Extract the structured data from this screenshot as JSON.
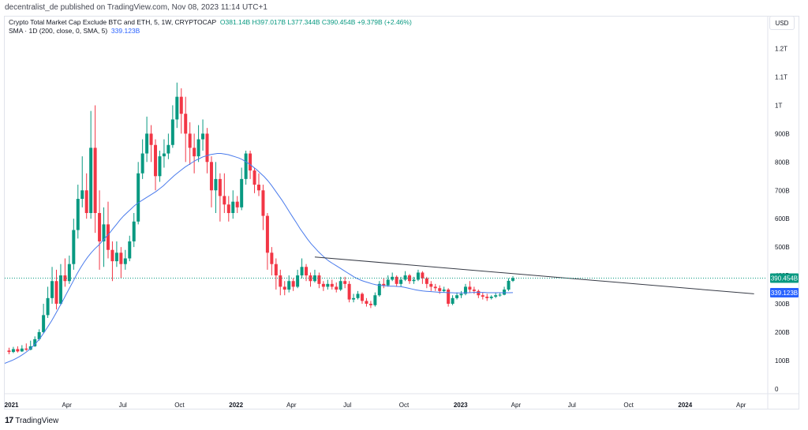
{
  "header": {
    "byline": "decentralist_de published on TradingView.com, Nov 08, 2023 11:14 UTC+1"
  },
  "legend": {
    "symbol": "Crypto Total Market Cap Exclude BTC and ETH, 5, 1W, CRYPTOCAP",
    "ohlc": "O381.14B H397.017B L377.344B C390.454B +9.379B (+2.46%)",
    "sma_label": "SMA · 1D (200, close, 0, SMA, 5)",
    "sma_value": "339.123B"
  },
  "toolbar": {
    "currency": "USD"
  },
  "footer": {
    "logo_text": "TradingView"
  },
  "colors": {
    "up": "#089981",
    "down": "#f23645",
    "sma": "#4a7bec",
    "trendline": "#363a45",
    "price_line": "#089981"
  },
  "chart_data": {
    "type": "candlestick",
    "timeframe": "1W",
    "y_unit": "B USD",
    "yticks": [
      {
        "v": 0,
        "label": "0"
      },
      {
        "v": 100,
        "label": "100B"
      },
      {
        "v": 200,
        "label": "200B"
      },
      {
        "v": 300,
        "label": "300B"
      },
      {
        "v": 400,
        "label": "400B"
      },
      {
        "v": 500,
        "label": "500B"
      },
      {
        "v": 600,
        "label": "600B"
      },
      {
        "v": 700,
        "label": "700B"
      },
      {
        "v": 800,
        "label": "800B"
      },
      {
        "v": 900,
        "label": "900B"
      },
      {
        "v": 1000,
        "label": "1T"
      },
      {
        "v": 1100,
        "label": "1.1T"
      },
      {
        "v": 1200,
        "label": "1.2T"
      }
    ],
    "xticks": [
      {
        "label": "2021",
        "bold": true,
        "date": "2021-01-01"
      },
      {
        "label": "Apr",
        "bold": false,
        "date": "2021-04-01"
      },
      {
        "label": "Jul",
        "bold": false,
        "date": "2021-07-01"
      },
      {
        "label": "Oct",
        "bold": false,
        "date": "2021-10-01"
      },
      {
        "label": "2022",
        "bold": true,
        "date": "2022-01-01"
      },
      {
        "label": "Apr",
        "bold": false,
        "date": "2022-04-01"
      },
      {
        "label": "Jul",
        "bold": false,
        "date": "2022-07-01"
      },
      {
        "label": "Oct",
        "bold": false,
        "date": "2022-10-01"
      },
      {
        "label": "2023",
        "bold": true,
        "date": "2023-01-01"
      },
      {
        "label": "Apr",
        "bold": false,
        "date": "2023-04-01"
      },
      {
        "label": "Jul",
        "bold": false,
        "date": "2023-07-01"
      },
      {
        "label": "Oct",
        "bold": false,
        "date": "2023-10-01"
      },
      {
        "label": "2024",
        "bold": true,
        "date": "2024-01-01"
      },
      {
        "label": "Apr",
        "bold": false,
        "date": "2024-04-01"
      }
    ],
    "x_start": "2020-12-21",
    "x_end": "2024-05-13",
    "y_range": [
      -20,
      1260
    ],
    "current_price": {
      "value": 390.454,
      "label": "390.454B"
    },
    "sma_last": {
      "value": 339.123,
      "label": "339.123B"
    },
    "trendline": {
      "start": {
        "date": "2022-05-09",
        "value": 465
      },
      "end": {
        "date": "2024-04-22",
        "value": 335
      }
    },
    "candles": [
      [
        135,
        130,
        145,
        122
      ],
      [
        130,
        140,
        148,
        126
      ],
      [
        140,
        132,
        150,
        128
      ],
      [
        132,
        142,
        154,
        130
      ],
      [
        142,
        138,
        160,
        134
      ],
      [
        138,
        150,
        170,
        136
      ],
      [
        150,
        175,
        185,
        148
      ],
      [
        175,
        200,
        210,
        170
      ],
      [
        200,
        260,
        300,
        195
      ],
      [
        260,
        320,
        360,
        250
      ],
      [
        320,
        380,
        430,
        300
      ],
      [
        380,
        300,
        420,
        280
      ],
      [
        300,
        400,
        440,
        295
      ],
      [
        400,
        380,
        460,
        360
      ],
      [
        380,
        440,
        470,
        370
      ],
      [
        440,
        560,
        600,
        420
      ],
      [
        560,
        670,
        720,
        530
      ],
      [
        670,
        700,
        820,
        640
      ],
      [
        700,
        620,
        760,
        600
      ],
      [
        620,
        850,
        980,
        600
      ],
      [
        850,
        620,
        1000,
        550
      ],
      [
        620,
        520,
        700,
        420
      ],
      [
        520,
        580,
        640,
        430
      ],
      [
        580,
        490,
        660,
        460
      ],
      [
        490,
        450,
        520,
        380
      ],
      [
        450,
        480,
        520,
        430
      ],
      [
        480,
        440,
        500,
        390
      ],
      [
        440,
        460,
        490,
        420
      ],
      [
        460,
        520,
        540,
        450
      ],
      [
        520,
        590,
        620,
        500
      ],
      [
        590,
        760,
        800,
        580
      ],
      [
        760,
        830,
        880,
        740
      ],
      [
        830,
        900,
        960,
        800
      ],
      [
        900,
        860,
        930,
        800
      ],
      [
        860,
        750,
        880,
        700
      ],
      [
        750,
        820,
        840,
        730
      ],
      [
        820,
        830,
        880,
        780
      ],
      [
        830,
        860,
        900,
        810
      ],
      [
        860,
        950,
        1000,
        850
      ],
      [
        950,
        1030,
        1080,
        920
      ],
      [
        1030,
        970,
        1060,
        900
      ],
      [
        970,
        900,
        1030,
        800
      ],
      [
        900,
        850,
        940,
        790
      ],
      [
        850,
        820,
        900,
        760
      ],
      [
        820,
        880,
        930,
        800
      ],
      [
        880,
        900,
        950,
        840
      ],
      [
        900,
        800,
        920,
        760
      ],
      [
        800,
        700,
        820,
        640
      ],
      [
        700,
        740,
        800,
        620
      ],
      [
        740,
        680,
        760,
        590
      ],
      [
        680,
        650,
        760,
        620
      ],
      [
        650,
        620,
        680,
        590
      ],
      [
        620,
        660,
        700,
        600
      ],
      [
        660,
        640,
        680,
        620
      ],
      [
        640,
        740,
        780,
        630
      ],
      [
        740,
        830,
        840,
        720
      ],
      [
        830,
        770,
        840,
        740
      ],
      [
        770,
        720,
        780,
        690
      ],
      [
        720,
        700,
        760,
        680
      ],
      [
        700,
        610,
        720,
        560
      ],
      [
        610,
        480,
        620,
        420
      ],
      [
        480,
        440,
        500,
        400
      ],
      [
        440,
        400,
        460,
        350
      ],
      [
        400,
        360,
        420,
        330
      ],
      [
        360,
        350,
        380,
        330
      ],
      [
        350,
        380,
        400,
        340
      ],
      [
        380,
        360,
        390,
        345
      ],
      [
        360,
        400,
        420,
        355
      ],
      [
        400,
        430,
        460,
        390
      ],
      [
        430,
        400,
        440,
        380
      ],
      [
        400,
        380,
        410,
        360
      ],
      [
        380,
        400,
        420,
        375
      ],
      [
        400,
        370,
        410,
        355
      ],
      [
        370,
        360,
        380,
        345
      ],
      [
        360,
        370,
        385,
        350
      ],
      [
        370,
        360,
        385,
        350
      ],
      [
        360,
        350,
        375,
        340
      ],
      [
        350,
        380,
        395,
        345
      ],
      [
        380,
        370,
        395,
        355
      ],
      [
        370,
        315,
        380,
        305
      ],
      [
        315,
        320,
        335,
        305
      ],
      [
        320,
        335,
        345,
        315
      ],
      [
        335,
        310,
        340,
        300
      ],
      [
        310,
        300,
        320,
        290
      ],
      [
        300,
        295,
        310,
        285
      ],
      [
        295,
        330,
        340,
        290
      ],
      [
        330,
        370,
        380,
        325
      ],
      [
        370,
        365,
        390,
        355
      ],
      [
        365,
        385,
        400,
        360
      ],
      [
        385,
        395,
        410,
        380
      ],
      [
        395,
        370,
        400,
        360
      ],
      [
        370,
        385,
        395,
        360
      ],
      [
        385,
        400,
        415,
        380
      ],
      [
        400,
        380,
        405,
        370
      ],
      [
        380,
        385,
        395,
        370
      ],
      [
        385,
        410,
        420,
        380
      ],
      [
        410,
        390,
        415,
        370
      ],
      [
        390,
        370,
        395,
        355
      ],
      [
        370,
        360,
        380,
        345
      ],
      [
        360,
        355,
        370,
        345
      ],
      [
        355,
        345,
        365,
        335
      ],
      [
        345,
        350,
        360,
        340
      ],
      [
        350,
        300,
        355,
        290
      ],
      [
        300,
        320,
        330,
        295
      ],
      [
        320,
        330,
        340,
        315
      ],
      [
        330,
        335,
        345,
        320
      ],
      [
        335,
        360,
        370,
        330
      ],
      [
        360,
        350,
        380,
        340
      ],
      [
        350,
        345,
        360,
        335
      ],
      [
        345,
        330,
        350,
        320
      ],
      [
        330,
        325,
        340,
        315
      ],
      [
        325,
        320,
        335,
        310
      ],
      [
        320,
        325,
        330,
        315
      ],
      [
        325,
        330,
        340,
        320
      ],
      [
        330,
        332,
        338,
        325
      ],
      [
        332,
        350,
        360,
        330
      ],
      [
        350,
        381,
        390,
        345
      ],
      [
        381,
        390.454,
        397,
        377
      ]
    ],
    "sma": [
      90,
      95,
      100,
      106,
      113,
      121,
      130,
      140,
      152,
      166,
      182,
      200,
      220,
      240,
      262,
      285,
      308,
      332,
      356,
      380,
      404,
      426,
      446,
      464,
      480,
      494,
      506,
      520,
      534,
      548,
      564,
      580,
      596,
      610,
      622,
      634,
      646,
      656,
      664,
      672,
      680,
      688,
      696,
      706,
      716,
      728,
      740,
      752,
      762,
      772,
      782,
      790,
      798,
      806,
      812,
      818,
      822,
      826,
      828,
      830,
      830,
      828,
      826,
      822,
      818,
      814,
      808,
      800,
      792,
      782,
      772,
      760,
      748,
      734,
      718,
      700,
      682,
      664,
      644,
      624,
      604,
      584,
      564,
      546,
      528,
      512,
      498,
      484,
      472,
      460,
      450,
      442,
      434,
      426,
      418,
      410,
      402,
      394,
      388,
      382,
      378,
      374,
      370,
      367,
      365,
      364,
      363,
      362,
      362,
      361,
      360,
      358,
      355,
      352,
      349,
      347,
      345,
      344,
      343,
      342,
      341,
      340,
      340,
      339,
      339,
      338,
      338,
      338,
      339,
      339,
      340,
      340,
      340,
      340,
      339,
      339,
      339,
      339,
      339,
      339,
      339,
      339.123
    ]
  }
}
